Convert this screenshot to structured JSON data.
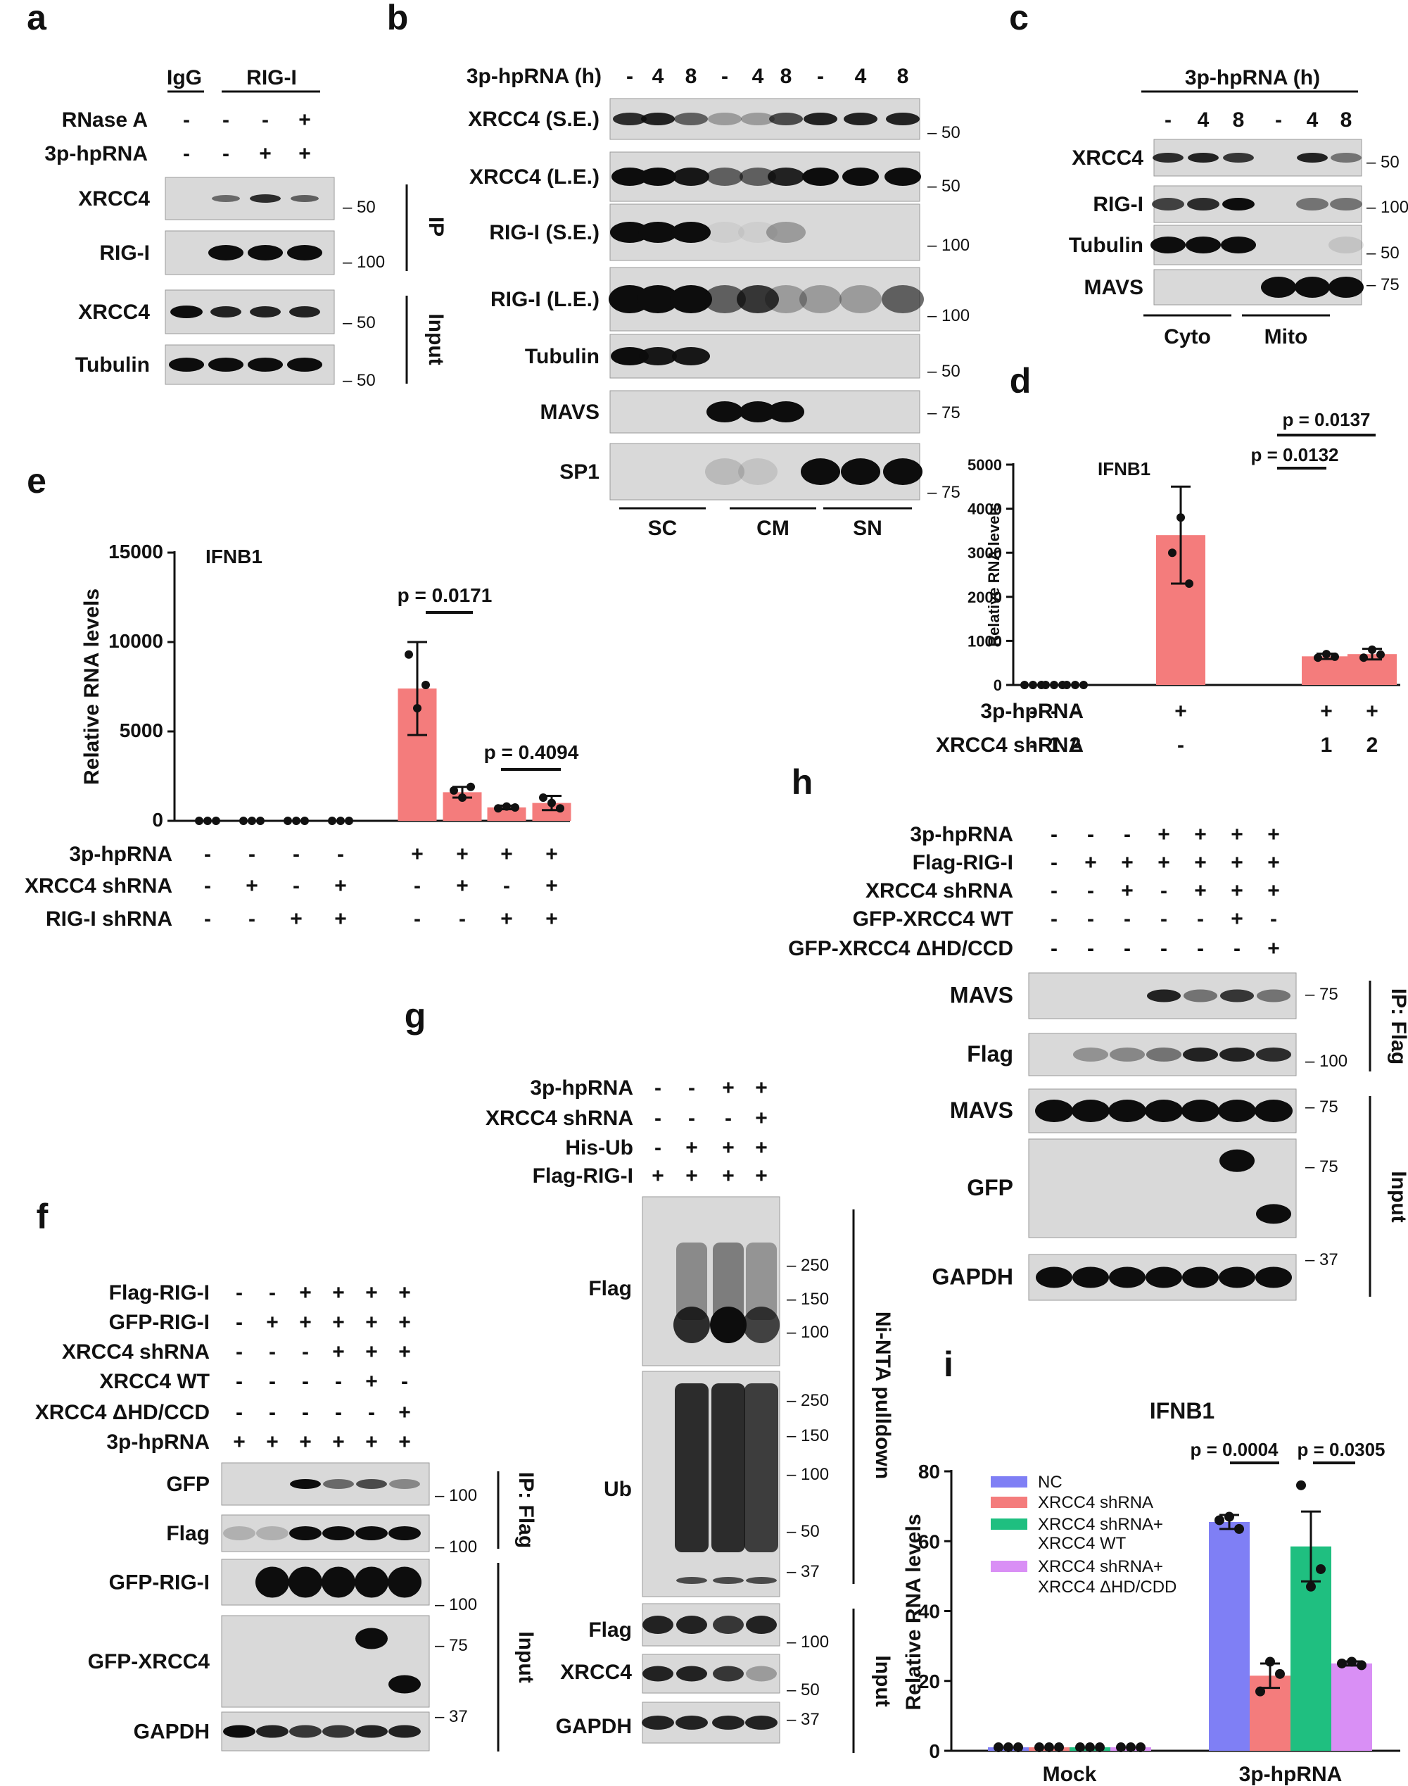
{
  "figure": {
    "panel_letters": [
      "a",
      "b",
      "c",
      "d",
      "e",
      "f",
      "g",
      "h",
      "i"
    ],
    "a": {
      "header_groups": [
        "IgG",
        "RIG-I"
      ],
      "row_labels": [
        "RNase A",
        "3p-hpRNA"
      ],
      "row_signs": [
        [
          "-",
          "-",
          "-",
          "+"
        ],
        [
          "-",
          "-",
          "+",
          "+"
        ]
      ],
      "blots": [
        "XRCC4",
        "RIG-I",
        "XRCC4",
        "Tubulin"
      ],
      "markers": [
        "– 50",
        "– 100",
        "– 50",
        "– 50"
      ],
      "sections": [
        "IP",
        "Input"
      ]
    },
    "b": {
      "treatment_label": "3p-hpRNA (h)",
      "treatment_values": [
        "-",
        "4",
        "8",
        "-",
        "4",
        "8",
        "-",
        "4",
        "8"
      ],
      "blots": [
        "XRCC4 (S.E.)",
        "XRCC4 (L.E.)",
        "RIG-I (S.E.)",
        "RIG-I (L.E.)",
        "Tubulin",
        "MAVS",
        "SP1"
      ],
      "markers": [
        "– 50",
        "– 50",
        "– 100",
        "– 100",
        "– 50",
        "– 75",
        "– 75"
      ],
      "fractions": [
        "SC",
        "CM",
        "SN"
      ]
    },
    "c": {
      "treatment_label": "3p-hpRNA (h)",
      "treatment_values": [
        "-",
        "4",
        "8",
        "-",
        "4",
        "8"
      ],
      "blots": [
        "XRCC4",
        "RIG-I",
        "Tubulin",
        "MAVS"
      ],
      "markers": [
        "– 50",
        "– 100",
        "– 50",
        "– 75"
      ],
      "fractions": [
        "Cyto",
        "Mito"
      ]
    },
    "f": {
      "row_labels": [
        "Flag-RIG-I",
        "GFP-RIG-I",
        "XRCC4 shRNA",
        "XRCC4 WT",
        "XRCC4 ΔHD/CCD",
        "3p-hpRNA"
      ],
      "row_signs": [
        [
          "-",
          "-",
          "+",
          "+",
          "+",
          "+"
        ],
        [
          "-",
          "+",
          "+",
          "+",
          "+",
          "+"
        ],
        [
          "-",
          "-",
          "-",
          "+",
          "+",
          "+"
        ],
        [
          "-",
          "-",
          "-",
          "-",
          "+",
          "-"
        ],
        [
          "-",
          "-",
          "-",
          "-",
          "-",
          "+"
        ],
        [
          "+",
          "+",
          "+",
          "+",
          "+",
          "+"
        ]
      ],
      "blots": [
        "GFP",
        "Flag",
        "GFP-RIG-I",
        "GFP-XRCC4",
        "GAPDH"
      ],
      "markers": [
        "– 100",
        "– 100",
        "– 100",
        "– 75",
        "– 37"
      ],
      "sections": [
        "IP: Flag",
        "Input"
      ]
    },
    "g": {
      "row_labels": [
        "3p-hpRNA",
        "XRCC4 shRNA",
        "His-Ub",
        "Flag-RIG-I"
      ],
      "row_signs": [
        [
          "-",
          "-",
          "+",
          "+"
        ],
        [
          "-",
          "-",
          "-",
          "+"
        ],
        [
          "-",
          "+",
          "+",
          "+"
        ],
        [
          "+",
          "+",
          "+",
          "+"
        ]
      ],
      "blots": [
        "Flag",
        "Ub",
        "Flag",
        "XRCC4",
        "GAPDH"
      ],
      "markers": [
        "– 250",
        "– 150",
        "– 100",
        "– 250",
        "– 150",
        "– 100",
        "– 50",
        "– 37",
        "– 100",
        "– 50",
        "– 37"
      ],
      "sections": [
        "Ni-NTA pulldown",
        "Input"
      ]
    },
    "h": {
      "row_labels": [
        "3p-hpRNA",
        "Flag-RIG-I",
        "XRCC4 shRNA",
        "GFP-XRCC4 WT",
        "GFP-XRCC4 ΔHD/CCD"
      ],
      "row_signs": [
        [
          "-",
          "-",
          "-",
          "+",
          "+",
          "+",
          "+"
        ],
        [
          "-",
          "+",
          "+",
          "+",
          "+",
          "+",
          "+"
        ],
        [
          "-",
          "-",
          "+",
          "-",
          "+",
          "+",
          "+"
        ],
        [
          "-",
          "-",
          "-",
          "-",
          "-",
          "+",
          "-"
        ],
        [
          "-",
          "-",
          "-",
          "-",
          "-",
          "-",
          "+"
        ]
      ],
      "blots": [
        "MAVS",
        "Flag",
        "MAVS",
        "GFP",
        "GAPDH"
      ],
      "markers": [
        "– 75",
        "– 100",
        "– 75",
        "– 75",
        "– 37"
      ],
      "sections": [
        "IP: Flag",
        "Input"
      ]
    }
  },
  "chart_data": [
    {
      "panel": "d",
      "type": "bar",
      "title": "IFNB1",
      "ylabel": "Relative RNA levels",
      "ylim": [
        0,
        5000
      ],
      "yticks": [
        "0",
        "1000",
        "2000",
        "3000",
        "4000",
        "5000"
      ],
      "row_labels": [
        "3p-hpRNA",
        "XRCC4 shRNA"
      ],
      "row_signs": [
        [
          "-",
          "-",
          "-",
          "+",
          "+",
          "+"
        ],
        [
          "-",
          "1",
          "2",
          "-",
          "1",
          "2"
        ]
      ],
      "values": [
        0,
        0,
        0,
        3400,
        650,
        700
      ],
      "errors": [
        0,
        0,
        0,
        1100,
        60,
        120
      ],
      "points": [
        [
          0,
          0,
          0
        ],
        [
          0,
          0,
          0
        ],
        [
          0,
          0,
          0
        ],
        [
          3000,
          3800,
          2300
        ],
        [
          620,
          700,
          640
        ],
        [
          620,
          800,
          690
        ]
      ],
      "annotations": [
        "p = 0.0137",
        "p = 0.0132"
      ],
      "color": "#f47c7c"
    },
    {
      "panel": "e",
      "type": "bar",
      "title": "IFNB1",
      "ylabel": "Relative RNA levels",
      "ylim": [
        0,
        15000
      ],
      "yticks": [
        "0",
        "5000",
        "10000",
        "15000"
      ],
      "row_labels": [
        "3p-hpRNA",
        "XRCC4 shRNA",
        "RIG-I shRNA"
      ],
      "row_signs": [
        [
          "-",
          "-",
          "-",
          "-",
          "+",
          "+",
          "+",
          "+"
        ],
        [
          "-",
          "+",
          "-",
          "+",
          "-",
          "+",
          "-",
          "+"
        ],
        [
          "-",
          "-",
          "+",
          "+",
          "-",
          "-",
          "+",
          "+"
        ]
      ],
      "values": [
        0,
        0,
        0,
        0,
        7400,
        1600,
        750,
        1000
      ],
      "errors": [
        0,
        0,
        0,
        0,
        2600,
        300,
        100,
        400
      ],
      "points": [
        [
          0,
          0,
          0
        ],
        [
          0,
          0,
          0
        ],
        [
          0,
          0,
          0
        ],
        [
          0,
          0,
          0
        ],
        [
          9300,
          6300,
          7600
        ],
        [
          1700,
          1300,
          1900
        ],
        [
          700,
          800,
          750
        ],
        [
          1300,
          1000,
          700
        ]
      ],
      "annotations": [
        "p = 0.0171",
        "p = 0.4094"
      ],
      "color": "#f47c7c"
    },
    {
      "panel": "i",
      "type": "bar",
      "title": "IFNB1",
      "ylabel": "Relative RNA levels",
      "ylim": [
        0,
        80
      ],
      "yticks": [
        "0",
        "20",
        "40",
        "60",
        "80"
      ],
      "categories": [
        "Mock",
        "3p-hpRNA"
      ],
      "series": [
        {
          "name": "NC",
          "color": "#7f7ff5",
          "values": [
            1,
            65.5
          ],
          "errors": [
            0,
            2
          ],
          "points": [
            [
              1,
              1,
              1
            ],
            [
              66,
              67,
              63.5
            ]
          ]
        },
        {
          "name": "XRCC4 shRNA",
          "color": "#f47c7c",
          "values": [
            1,
            21.5
          ],
          "errors": [
            0,
            3.5
          ],
          "points": [
            [
              1,
              1,
              1
            ],
            [
              17,
              25.5,
              22
            ]
          ]
        },
        {
          "name": "XRCC4 shRNA+ XRCC4 WT",
          "color": "#1fbf80",
          "values": [
            1,
            58.5
          ],
          "errors": [
            0,
            10
          ],
          "points": [
            [
              1,
              1,
              1
            ],
            [
              76,
              47,
              52
            ]
          ]
        },
        {
          "name": "XRCC4 shRNA+ XRCC4 ΔHD/CDD",
          "color": "#d98ff5",
          "values": [
            1,
            25
          ],
          "errors": [
            0,
            0.6
          ],
          "points": [
            [
              1,
              1,
              1
            ],
            [
              25,
              25.5,
              24.5
            ]
          ]
        }
      ],
      "legend_lines": [
        "NC",
        "XRCC4 shRNA",
        "XRCC4 shRNA+",
        "XRCC4 WT",
        "XRCC4 shRNA+",
        "XRCC4 ΔHD/CDD"
      ],
      "annotations": [
        "p = 0.0004",
        "p = 0.0305"
      ],
      "legend": "top-left"
    }
  ]
}
